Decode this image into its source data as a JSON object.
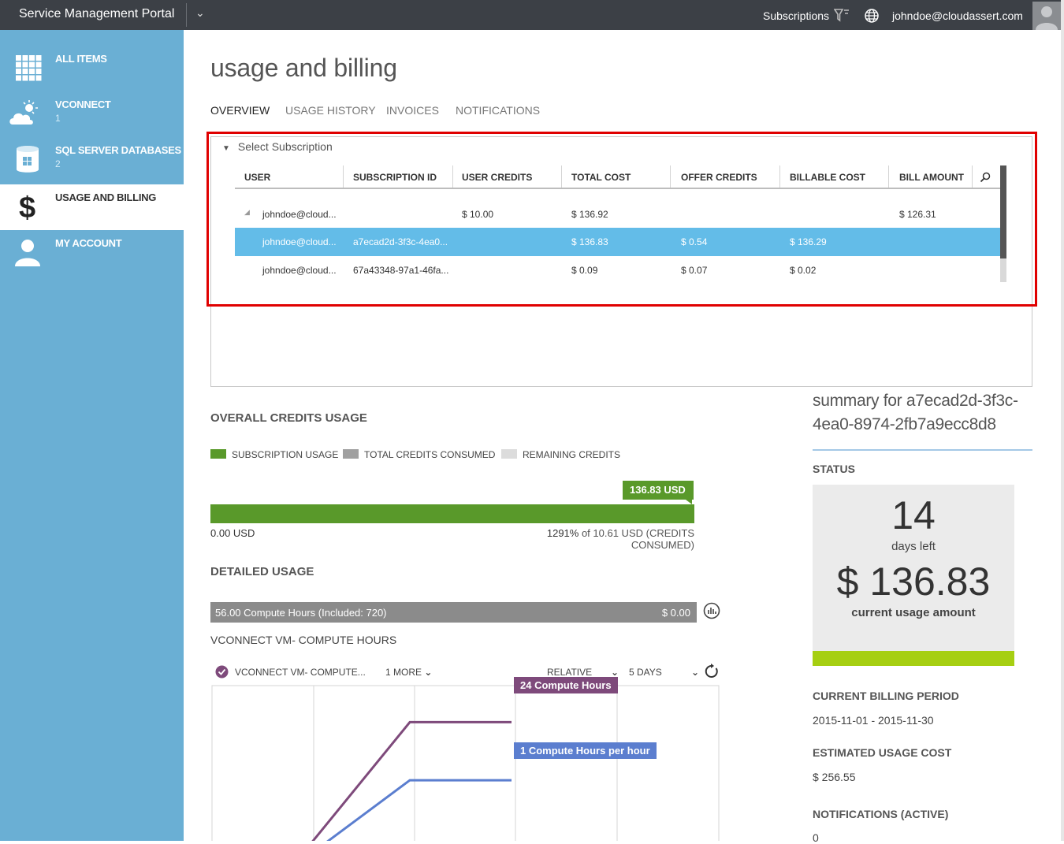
{
  "topbar": {
    "brand": "Service Management Portal",
    "subscriptions_label": "Subscriptions",
    "user_email": "johndoe@cloudassert.com"
  },
  "sidebar": {
    "items": [
      {
        "label": "ALL ITEMS",
        "count": "",
        "icon": "grid-icon"
      },
      {
        "label": "VCONNECT",
        "count": "1",
        "icon": "cloud-sun-icon"
      },
      {
        "label": "SQL SERVER DATABASES",
        "count": "2",
        "icon": "database-icon"
      },
      {
        "label": "USAGE AND BILLING",
        "count": "",
        "icon": "dollar-icon"
      },
      {
        "label": "MY ACCOUNT",
        "count": "",
        "icon": "person-icon"
      }
    ]
  },
  "page": {
    "title": "usage and billing",
    "tabs": [
      "OVERVIEW",
      "USAGE HISTORY",
      "INVOICES",
      "NOTIFICATIONS"
    ]
  },
  "subscription": {
    "header": "Select Subscription",
    "columns": [
      "USER",
      "SUBSCRIPTION ID",
      "USER CREDITS",
      "TOTAL COST",
      "OFFER CREDITS",
      "BILLABLE COST",
      "BILL AMOUNT"
    ],
    "rows": [
      {
        "user": "johndoe@cloud...",
        "sub_id": "",
        "user_credits": "$ 10.00",
        "total_cost": "$ 136.92",
        "offer_credits": "",
        "billable_cost": "",
        "bill_amount": "$ 126.31"
      },
      {
        "user": "johndoe@cloud...",
        "sub_id": "a7ecad2d-3f3c-4ea0...",
        "user_credits": "",
        "total_cost": "$ 136.83",
        "offer_credits": "$ 0.54",
        "billable_cost": "$ 136.29",
        "bill_amount": ""
      },
      {
        "user": "johndoe@cloud...",
        "sub_id": "67a43348-97a1-46fa...",
        "user_credits": "",
        "total_cost": "$ 0.09",
        "offer_credits": "$ 0.07",
        "billable_cost": "$ 0.02",
        "bill_amount": ""
      }
    ]
  },
  "credits": {
    "title": "OVERALL CREDITS USAGE",
    "legend": [
      "SUBSCRIPTION USAGE",
      "TOTAL CREDITS CONSUMED",
      "REMAINING CREDITS"
    ],
    "legend_colors": [
      "#59992a",
      "#a0a0a0",
      "#dcdcdc"
    ],
    "tag": "136.83 USD",
    "min": "0.00 USD",
    "pct": "1291%",
    "max_rest": " of 10.61 USD (CREDITS CONSUMED)"
  },
  "detailed": {
    "title": "DETAILED USAGE",
    "bar_label": "56.00 Compute Hours (Included: 720)",
    "bar_amount": "$ 0.00",
    "vm_label": "VCONNECT VM- COMPUTE HOURS",
    "series_label": "VCONNECT VM- COMPUTE...",
    "more": "1 MORE",
    "relative": "RELATIVE",
    "days": "5 DAYS",
    "callout_purple": "24 Compute Hours",
    "callout_blue": "1 Compute Hours per hour"
  },
  "chart_data": {
    "type": "line",
    "series": [
      {
        "name": "24 Compute Hours",
        "color": "#7e4a7b",
        "points": [
          0.0,
          0.12,
          0.78,
          0.78
        ]
      },
      {
        "name": "1 Compute Hours per hour",
        "color": "#5b7ecf",
        "points": [
          0.0,
          0.07,
          0.47,
          0.47
        ]
      }
    ]
  },
  "summary": {
    "title": "summary for a7ecad2d-3f3c-4ea0-8974-2fb7a9ecc8d8",
    "status_label": "STATUS",
    "days": "14",
    "days_label": "days left",
    "amount": "$ 136.83",
    "amount_label": "current usage amount",
    "period_label": "CURRENT BILLING PERIOD",
    "period": "2015-11-01 - 2015-11-30",
    "est_label": "ESTIMATED USAGE COST",
    "est": "$ 256.55",
    "notif_label": "NOTIFICATIONS (ACTIVE)",
    "notif": "0"
  }
}
